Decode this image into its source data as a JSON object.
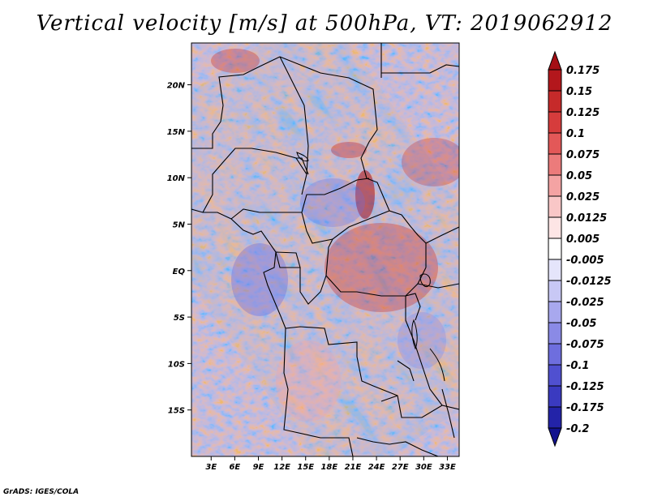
{
  "title": "Vertical velocity [m/s] at 500hPa, VT: 2019062912",
  "footer": "GrADS: IGES/COLA",
  "map": {
    "lat_labels": [
      "20N",
      "15N",
      "10N",
      "5N",
      "EQ",
      "5S",
      "10S",
      "15S"
    ],
    "lat_values": [
      20,
      15,
      10,
      5,
      0,
      -5,
      -10,
      -15
    ],
    "lon_labels": [
      "3E",
      "6E",
      "9E",
      "12E",
      "15E",
      "18E",
      "21E",
      "24E",
      "27E",
      "30E",
      "33E"
    ],
    "lon_values": [
      3,
      6,
      9,
      12,
      15,
      18,
      21,
      24,
      27,
      30,
      33
    ],
    "lon_range": [
      0.5,
      34.5
    ],
    "lat_range": [
      -20,
      24.5
    ]
  },
  "colorbar": {
    "labels": [
      "0.175",
      "0.15",
      "0.125",
      "0.1",
      "0.075",
      "0.05",
      "0.025",
      "0.0125",
      "0.005",
      "-0.005",
      "-0.0125",
      "-0.025",
      "-0.05",
      "-0.075",
      "-0.1",
      "-0.125",
      "-0.175",
      "-0.2"
    ],
    "colors": [
      "#a50f15",
      "#b3171c",
      "#c62a2a",
      "#d63c3c",
      "#e35858",
      "#ec7b7b",
      "#f4a3a3",
      "#f9c7c7",
      "#fde5e5",
      "#ffffff",
      "#e5e5fb",
      "#c8c8f5",
      "#a8a8ee",
      "#8a8ae6",
      "#6e6ede",
      "#5050d0",
      "#3a3ac0",
      "#2323a8",
      "#12128e"
    ]
  }
}
